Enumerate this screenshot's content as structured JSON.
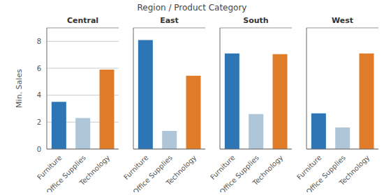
{
  "title": "Region  /  Product Category",
  "chart_data": [
    {
      "type": "bar",
      "title": "Central",
      "ylabel": "Min. Sales",
      "categories": [
        "Furniture",
        "Office Supplies",
        "Technology"
      ],
      "values": [
        3.5,
        2.3,
        5.9
      ],
      "colors": [
        "#2e75b6",
        "#aec6d8",
        "#e07b28"
      ],
      "ylim": [
        0,
        9.0
      ],
      "yticks": [
        0,
        2,
        4,
        6,
        8
      ],
      "grid": true
    },
    {
      "type": "bar",
      "title": "East",
      "categories": [
        "Furniture",
        "Office Supplies",
        "Technology"
      ],
      "values": [
        8.1,
        1.35,
        5.45
      ],
      "colors": [
        "#2e75b6",
        "#aec6d8",
        "#e07b28"
      ],
      "ylim": [
        0,
        9.0
      ],
      "yticks": [
        0,
        2,
        4,
        6,
        8
      ],
      "grid": true,
      "tick_labels": "x"
    },
    {
      "type": "bar",
      "title": "South",
      "categories": [
        "Furniture",
        "Office Supplies",
        "Technology"
      ],
      "values": [
        7.1,
        2.6,
        7.05
      ],
      "colors": [
        "#2e75b6",
        "#aec6d8",
        "#e07b28"
      ],
      "ylim": [
        0,
        9.0
      ],
      "yticks": [
        0,
        2,
        4,
        6,
        8
      ],
      "grid": true,
      "tick_labels": "x"
    },
    {
      "type": "bar",
      "title": "West",
      "categories": [
        "Furniture",
        "Office Supplies",
        "Technology"
      ],
      "values": [
        2.65,
        1.6,
        7.1
      ],
      "colors": [
        "#2e75b6",
        "#aec6d8",
        "#e07b28"
      ],
      "ylim": [
        0,
        9.0
      ],
      "yticks": [
        0,
        2,
        4,
        6,
        8
      ],
      "grid": true,
      "tick_labels": "x"
    }
  ]
}
